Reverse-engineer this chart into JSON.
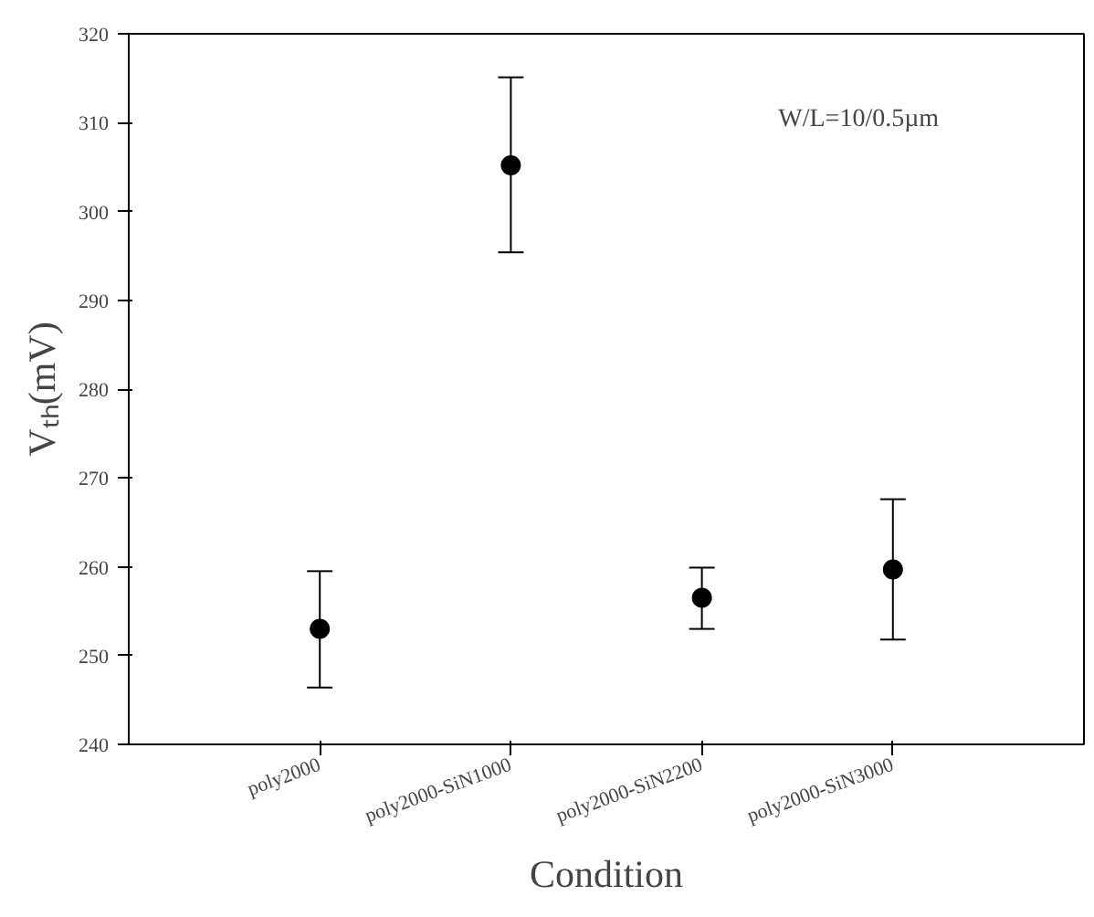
{
  "chart_data": {
    "type": "scatter",
    "xlabel": "Condition",
    "ylabel": "Vₜₕ(mV)",
    "categories": [
      "poly2000",
      "poly2000-SiN1000",
      "poly2000-SiN2200",
      "poly2000-SiN3000"
    ],
    "series": [
      {
        "color": "#000000",
        "values": [
          253.0,
          305.2,
          256.5,
          259.7
        ],
        "errors": [
          [
            246.4,
            259.5
          ],
          [
            295.4,
            315.1
          ],
          [
            253.0,
            259.9
          ],
          [
            251.8,
            267.6
          ]
        ]
      }
    ],
    "marker": "circle",
    "ylim": [
      240,
      320
    ],
    "yticks": [
      240,
      250,
      260,
      270,
      280,
      290,
      300,
      310,
      320
    ],
    "grid": false,
    "annotations": [
      "W/L=10/0.5µm"
    ]
  }
}
